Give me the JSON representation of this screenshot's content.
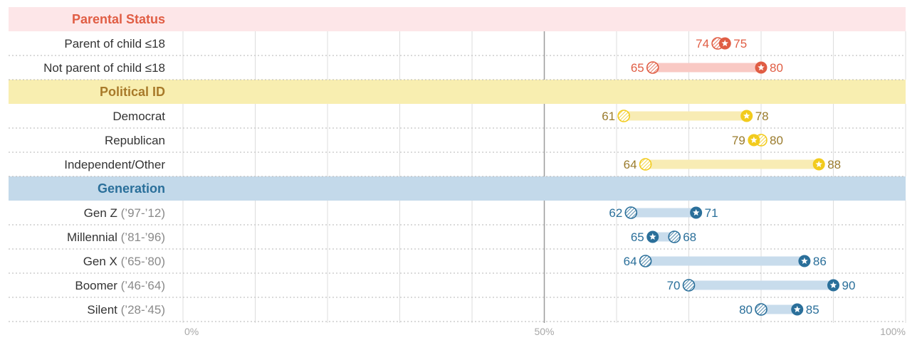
{
  "chart_data": {
    "type": "dumbbell",
    "xlim": [
      0,
      100
    ],
    "x_ticks": [
      "0%",
      "50%",
      "100%"
    ],
    "grid": true,
    "groups": [
      {
        "name": "Parental Status",
        "color": "#e05d44",
        "band_color": "#fde6e8",
        "bar_color": "#f9c9c4",
        "rows": [
          {
            "label": "Parent of child ≤18",
            "years": "",
            "hatched": 74,
            "star": 75
          },
          {
            "label": "Not parent of child ≤18",
            "years": "",
            "hatched": 65,
            "star": 80
          }
        ]
      },
      {
        "name": "Political ID",
        "color": "#f2cb1d",
        "text_color": "#9a7b2c",
        "title_color": "#a87a2a",
        "band_color": "#f8eeb0",
        "bar_color": "#f8ecb4",
        "rows": [
          {
            "label": "Democrat",
            "years": "",
            "hatched": 61,
            "star": 78
          },
          {
            "label": "Republican",
            "years": "",
            "hatched": 80,
            "star": 79
          },
          {
            "label": "Independent/Other",
            "years": "",
            "hatched": 64,
            "star": 88
          }
        ]
      },
      {
        "name": "Generation",
        "color": "#2a6f9a",
        "band_color": "#c3d9ea",
        "bar_color": "#c8dcec",
        "rows": [
          {
            "label": "Gen Z",
            "years": "(’97-’12)",
            "hatched": 62,
            "star": 71
          },
          {
            "label": "Millennial",
            "years": "(’81-’96)",
            "hatched": 68,
            "star": 65
          },
          {
            "label": "Gen X",
            "years": "(’65-’80)",
            "hatched": 64,
            "star": 86
          },
          {
            "label": "Boomer",
            "years": "(’46-’64)",
            "hatched": 70,
            "star": 90
          },
          {
            "label": "Silent",
            "years": "(’28-’45)",
            "hatched": 80,
            "star": 85
          }
        ]
      }
    ]
  }
}
